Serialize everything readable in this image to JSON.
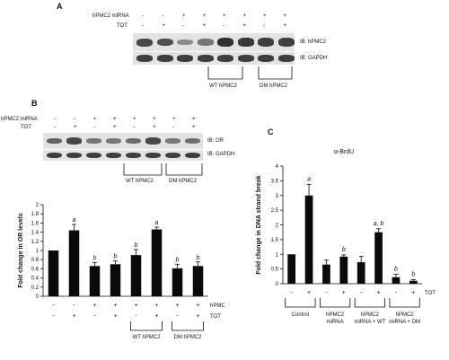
{
  "panelA": {
    "letter": "A",
    "row1_label": "hPMC2 miRNA",
    "row2_label": "TOT",
    "row1": [
      "-",
      "-",
      "+",
      "+",
      "+",
      "+",
      "+",
      "+"
    ],
    "row2": [
      "-",
      "+",
      "-",
      "+",
      "-",
      "+",
      "-",
      "+"
    ],
    "blot1_label": "IB: hPMC2",
    "blot2_label": "IB: GAPDH",
    "group1": "WT hPMC2",
    "group2": "DM hPMC2",
    "blot1_intensity": [
      0.8,
      0.75,
      0.3,
      0.45,
      0.95,
      0.9,
      0.85,
      0.85
    ],
    "blot2_intensity": [
      0.85,
      0.85,
      0.85,
      0.85,
      0.85,
      0.85,
      0.85,
      0.85
    ]
  },
  "panelB": {
    "letter": "B",
    "row1_label": "hPMC2 miRNA",
    "row2_label": "TOT",
    "row1": [
      "-",
      "-",
      "+",
      "+",
      "+",
      "+",
      "+",
      "+"
    ],
    "row2": [
      "-",
      "+",
      "-",
      "+",
      "-",
      "+",
      "-",
      "+"
    ],
    "blot1_label": "IB: OR",
    "blot2_label": "IB: GAPDH",
    "group1": "WT hPMC2",
    "group2": "DM hPMC2",
    "blot1_intensity": [
      0.6,
      0.8,
      0.45,
      0.45,
      0.55,
      0.8,
      0.45,
      0.5
    ],
    "blot2_intensity": [
      0.85,
      0.85,
      0.85,
      0.85,
      0.85,
      0.85,
      0.85,
      0.85
    ]
  },
  "panelC": {
    "letter": "C",
    "groups": [
      "Control",
      "hPMC2 miRNA",
      "hPMC2 miRNA + WT",
      "hPMC2 miRNA + DM"
    ]
  },
  "chart_data": [
    {
      "type": "bar",
      "panel": "B",
      "ylabel": "Fold change in OR levels",
      "ylim": [
        0,
        2
      ],
      "yticks": [
        "0",
        "0.2",
        "0.4",
        "0.6",
        "0.8",
        "1",
        "1.2",
        "1.4",
        "1.6",
        "1.8",
        "2"
      ],
      "values": [
        1.0,
        1.44,
        0.66,
        0.7,
        0.9,
        1.46,
        0.61,
        0.66
      ],
      "errors": [
        0.0,
        0.13,
        0.08,
        0.07,
        0.12,
        0.05,
        0.09,
        0.09
      ],
      "annotations": [
        "",
        "a",
        "b",
        "b",
        "b",
        "a",
        "b",
        "b"
      ],
      "row1_label": "hPMC2 miRNA",
      "row2_label": "TOT",
      "row1": [
        "-",
        "-",
        "+",
        "+",
        "+",
        "+",
        "+",
        "+"
      ],
      "row2": [
        "-",
        "+",
        "-",
        "+",
        "-",
        "+",
        "-",
        "+"
      ],
      "group1": "WT hPMC2",
      "group2": "DM hPMC2"
    },
    {
      "type": "bar",
      "panel": "C",
      "title": "α-BrdU",
      "ylabel": "Fold change in DNA strand break",
      "ylim": [
        0,
        4
      ],
      "yticks": [
        "0",
        "0.5",
        "1",
        "1.5",
        "2",
        "2.5",
        "3",
        "3.5",
        "4"
      ],
      "values": [
        1.0,
        3.0,
        0.65,
        0.92,
        0.73,
        1.75,
        0.22,
        0.1
      ],
      "errors": [
        0.0,
        0.38,
        0.15,
        0.06,
        0.2,
        0.12,
        0.1,
        0.04
      ],
      "annotations": [
        "",
        "a",
        "",
        "b",
        "",
        "a, b",
        "b",
        "b"
      ],
      "tot": [
        "-",
        "+",
        "-",
        "+",
        "-",
        "+",
        "-",
        "+"
      ],
      "tot_label": "TOT",
      "groups": [
        "Control",
        "hPMC2 miRNA",
        "hPMC2 miRNA + WT",
        "hPMC2 miRNA + DM"
      ]
    }
  ]
}
